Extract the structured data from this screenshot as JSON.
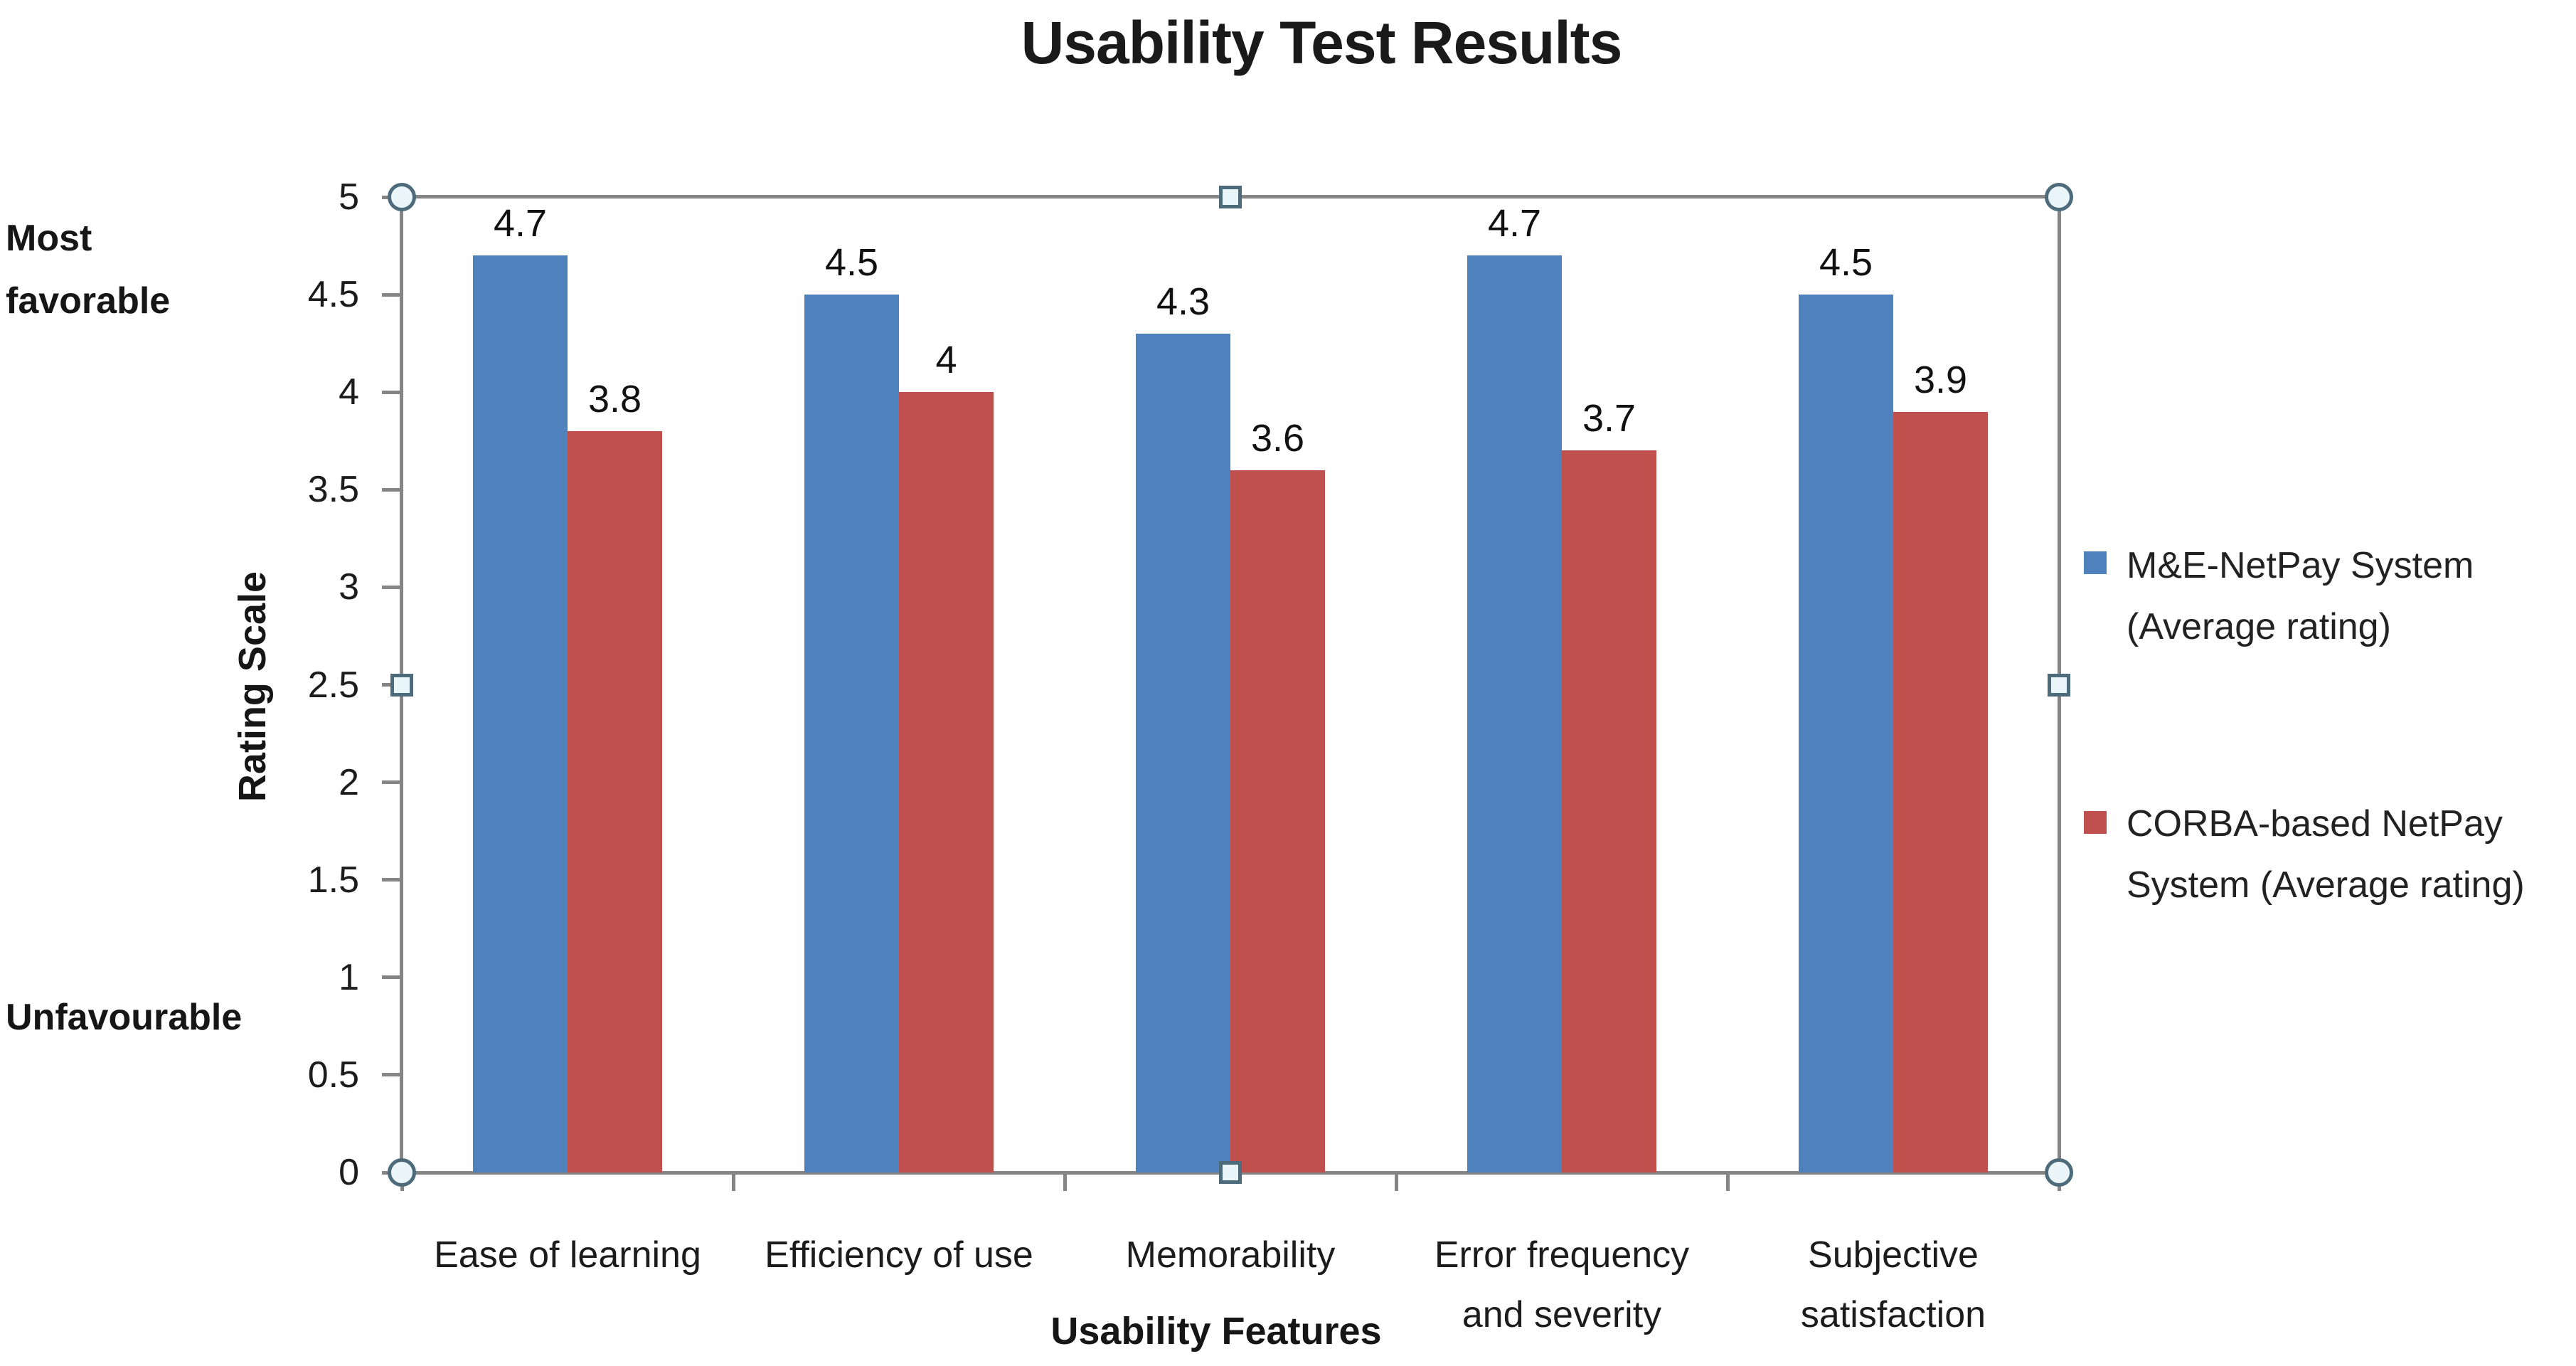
{
  "title": "Usability Test Results",
  "y_axis": {
    "title": "Rating Scale",
    "tick_labels": [
      "5",
      "4.5",
      "4",
      "3.5",
      "3",
      "2.5",
      "2",
      "1.5",
      "1",
      "0.5",
      "0"
    ],
    "max_annotation": "Most\nfavorable",
    "min_annotation": "Unfavourable"
  },
  "x_axis": {
    "title": "Usability Features",
    "category_display_labels": [
      "Ease of learning",
      "Efficiency of use",
      "Memorability",
      "Error frequency\nand severity",
      "Subjective\nsatisfaction"
    ]
  },
  "legend": {
    "position": "right",
    "items": [
      {
        "label": "M&E-NetPay System\n(Average rating)",
        "color": "#4F81BD"
      },
      {
        "label": "CORBA-based NetPay\nSystem (Average rating)",
        "color": "#C0504D"
      }
    ]
  },
  "selection": {
    "corner_handle_shape": "circle",
    "edge_handle_shape": "square",
    "handle_fill": "#e9f5f8",
    "handle_border": "#4e6b7b",
    "border_color": "#858585"
  },
  "colors": {
    "series_blue": "#4F81BD",
    "series_red": "#C0504D",
    "axis": "#858585",
    "text": "#1c1c1c"
  },
  "chart_data": {
    "type": "bar",
    "title": "Usability Test Results",
    "xlabel": "Usability Features",
    "ylabel": "Rating Scale",
    "ylim": [
      0,
      5
    ],
    "ytick_step": 0.5,
    "grid": false,
    "legend_position": "right",
    "data_labels": true,
    "categories": [
      "Ease of learning",
      "Efficiency of use",
      "Memorability",
      "Error frequency and severity",
      "Subjective satisfaction"
    ],
    "series": [
      {
        "name": "M&E-NetPay System (Average rating)",
        "color": "#4F81BD",
        "values": [
          4.7,
          4.5,
          4.3,
          4.7,
          4.5
        ]
      },
      {
        "name": "CORBA-based NetPay System (Average rating)",
        "color": "#C0504D",
        "values": [
          3.8,
          4,
          3.6,
          3.7,
          3.9
        ]
      }
    ]
  }
}
